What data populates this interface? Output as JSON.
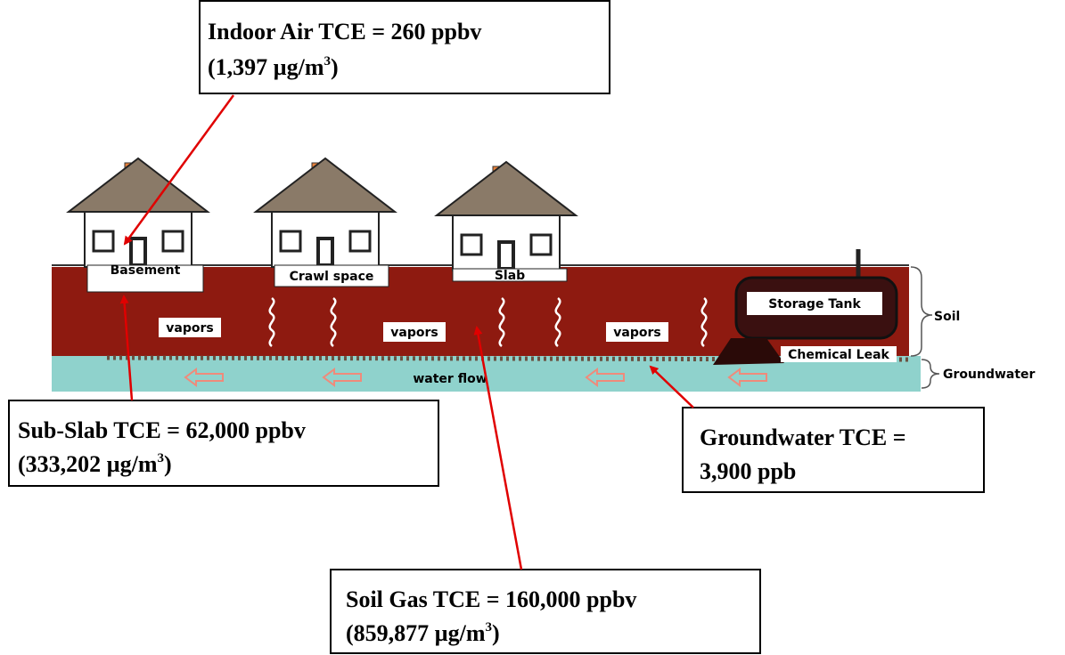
{
  "callouts": {
    "indoor_air": {
      "line1": "Indoor Air TCE = 260 ppbv",
      "line2": "(1,397 µg/m",
      "sup": "3",
      "close": ")"
    },
    "sub_slab": {
      "line1": "Sub-Slab TCE = 62,000 ppbv",
      "line2": "(333,202 µg/m",
      "sup": "3",
      "close": ")"
    },
    "groundwater": {
      "line1": "Groundwater TCE =",
      "line2": "3,900 ppb"
    },
    "soil_gas": {
      "line1": "Soil Gas TCE = 160,000 ppbv",
      "line2": "(859,877 µg/m",
      "sup": "3",
      "close": ")"
    }
  },
  "diagram": {
    "houses": [
      "Basement",
      "Crawl space",
      "Slab"
    ],
    "storage_tank": "Storage Tank",
    "vapors": [
      "vapors",
      "vapors",
      "vapors"
    ],
    "chemical_leak": "Chemical Leak",
    "water_flow": "water flow",
    "layers": [
      "Soil",
      "Groundwater"
    ]
  }
}
